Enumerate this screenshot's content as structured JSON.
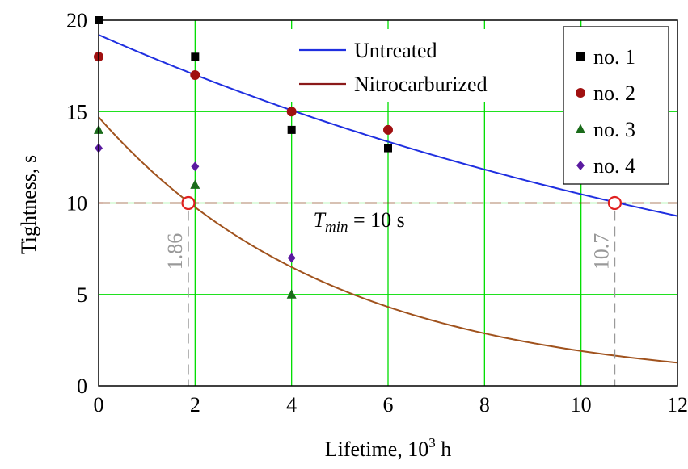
{
  "chart_data": {
    "type": "scatter",
    "xlabel_base": "Lifetime, 10",
    "xlabel_sup": "3",
    "xlabel_unit": " h",
    "ylabel": "Tightness, s",
    "xlim": [
      0,
      12
    ],
    "ylim": [
      0,
      20
    ],
    "xticks": [
      "0",
      "2",
      "4",
      "6",
      "8",
      "10",
      "12"
    ],
    "yticks": [
      "0",
      "5",
      "10",
      "15",
      "20"
    ],
    "grid": true,
    "grid_color": "#00dd00",
    "curves": [
      {
        "name": "Untreated",
        "color": "#1f2fe0",
        "a": 19.2,
        "b": 0.0605
      },
      {
        "name": "Nitrocarburized",
        "color": "#a0521d",
        "a": 14.7,
        "b": 0.2042
      }
    ],
    "curve_legend_colors": [
      "#1f2fe0",
      "#8b1a1a"
    ],
    "points": [
      {
        "name": "no. 1",
        "marker": "square",
        "color": "#000000",
        "x": [
          0,
          2,
          4,
          6
        ],
        "y": [
          20,
          18,
          14,
          13
        ]
      },
      {
        "name": "no. 2",
        "marker": "circle",
        "color": "#a01010",
        "x": [
          0,
          2,
          4,
          6
        ],
        "y": [
          18,
          17,
          15,
          14
        ]
      },
      {
        "name": "no. 3",
        "marker": "triangle",
        "color": "#1a6b1a",
        "x": [
          0,
          2,
          4
        ],
        "y": [
          14,
          11,
          5
        ]
      },
      {
        "name": "no. 4",
        "marker": "diamond",
        "color": "#5a1aa0",
        "x": [
          0,
          2,
          4
        ],
        "y": [
          13,
          12,
          7
        ]
      }
    ],
    "threshold": {
      "y": 10,
      "color": "#a01010",
      "label_T": "T",
      "label_sub": "min",
      "label_rest": " = 10 s"
    },
    "intersections": [
      {
        "x": 1.86,
        "label": "1.86"
      },
      {
        "x": 10.7,
        "label": "10.7"
      }
    ],
    "intersection_color": "#e02020",
    "vline_color": "#999999"
  }
}
